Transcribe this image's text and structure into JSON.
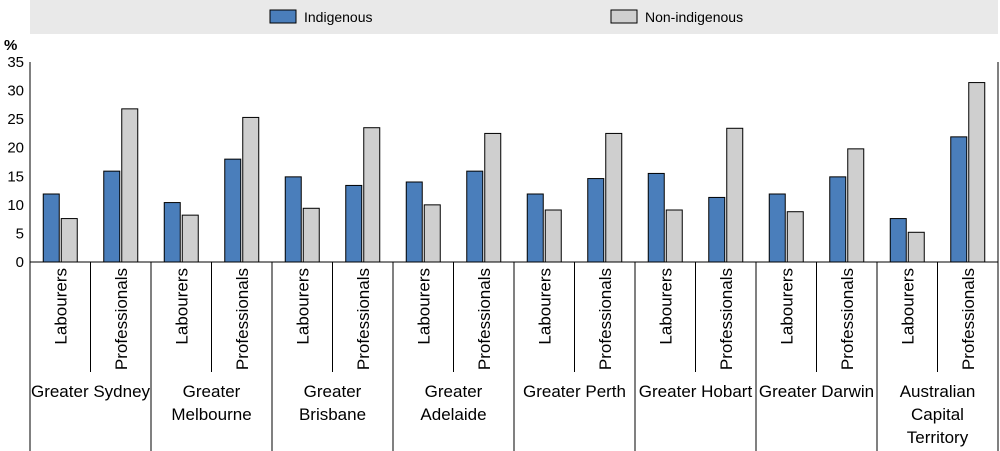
{
  "chart_data": {
    "type": "bar",
    "ylabel": "%",
    "ylim": [
      0,
      35
    ],
    "yticks": [
      "0",
      "5",
      "10",
      "15",
      "20",
      "25",
      "30",
      "35"
    ],
    "grid": "horizontal",
    "legend_position": "top",
    "groups": [
      {
        "label_lines": [
          "Greater Sydney"
        ],
        "categories": [
          "Labourers",
          "Professionals"
        ]
      },
      {
        "label_lines": [
          "Greater",
          "Melbourne"
        ],
        "categories": [
          "Labourers",
          "Professionals"
        ]
      },
      {
        "label_lines": [
          "Greater",
          "Brisbane"
        ],
        "categories": [
          "Labourers",
          "Professionals"
        ]
      },
      {
        "label_lines": [
          "Greater",
          "Adelaide"
        ],
        "categories": [
          "Labourers",
          "Professionals"
        ]
      },
      {
        "label_lines": [
          "Greater Perth"
        ],
        "categories": [
          "Labourers",
          "Professionals"
        ]
      },
      {
        "label_lines": [
          "Greater Hobart"
        ],
        "categories": [
          "Labourers",
          "Professionals"
        ]
      },
      {
        "label_lines": [
          "Greater Darwin"
        ],
        "categories": [
          "Labourers",
          "Professionals"
        ]
      },
      {
        "label_lines": [
          "Australian",
          "Capital",
          "Territory"
        ],
        "categories": [
          "Labourers",
          "Professionals"
        ]
      }
    ],
    "series": [
      {
        "name": "Indigenous",
        "color": "#4a7ebb",
        "values": [
          11.9,
          15.9,
          10.4,
          18.0,
          14.9,
          13.4,
          14.0,
          15.9,
          11.9,
          14.6,
          15.5,
          11.3,
          11.9,
          14.9,
          7.6,
          21.9
        ]
      },
      {
        "name": "Non-indigenous",
        "color": "#cfcfcf",
        "values": [
          7.6,
          26.8,
          8.2,
          25.3,
          9.4,
          23.5,
          10.0,
          22.5,
          9.1,
          22.5,
          9.1,
          23.4,
          8.8,
          19.8,
          5.2,
          31.4
        ]
      }
    ]
  }
}
